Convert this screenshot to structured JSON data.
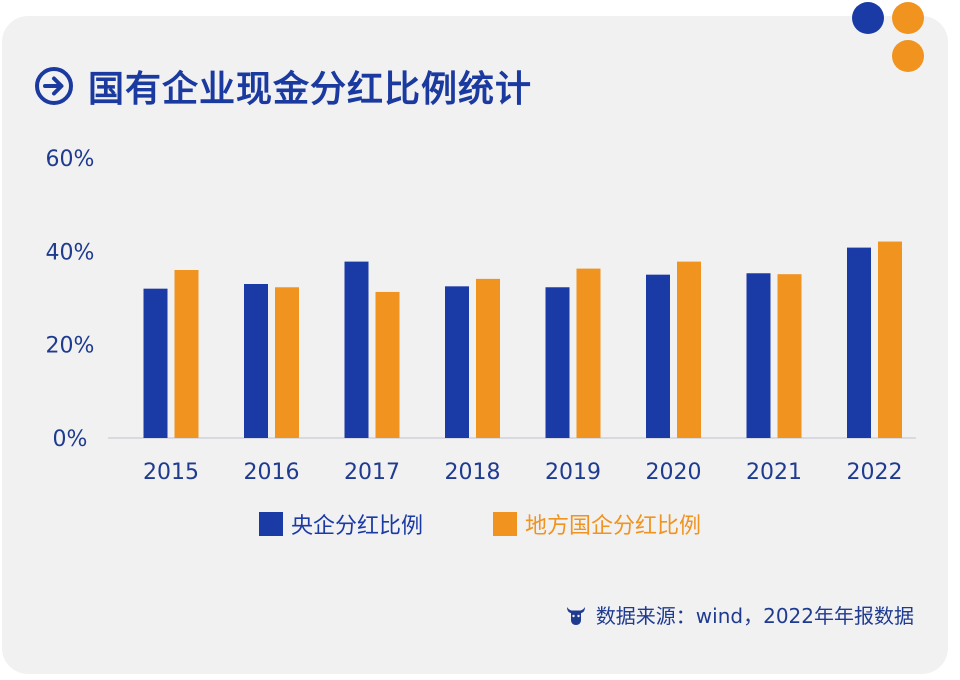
{
  "title": "国有企业现金分红比例统计",
  "colors": {
    "central": "#1a3aa6",
    "local": "#f0931f",
    "title": "#1a3aa0",
    "axis_text": "#1f3b8f"
  },
  "icons": {
    "title": "arrow-right-circle-icon",
    "source": "bull-icon"
  },
  "source": "数据来源：wind，2022年年报数据",
  "chart_data": {
    "type": "bar",
    "title": "国有企业现金分红比例统计",
    "categories": [
      "2015",
      "2016",
      "2017",
      "2018",
      "2019",
      "2020",
      "2021",
      "2022"
    ],
    "series": [
      {
        "name": "央企分红比例",
        "values": [
          32,
          33,
          37.8,
          32.5,
          32.3,
          35,
          35.3,
          40.8
        ]
      },
      {
        "name": "地方国企分红比例",
        "values": [
          36,
          32.3,
          31.3,
          34.1,
          36.3,
          37.8,
          35.1,
          42.1
        ]
      }
    ],
    "yticks": [
      "0%",
      "20%",
      "40%",
      "60%"
    ],
    "ylim": [
      0,
      60
    ],
    "grid": false,
    "legend_position": "bottom"
  }
}
